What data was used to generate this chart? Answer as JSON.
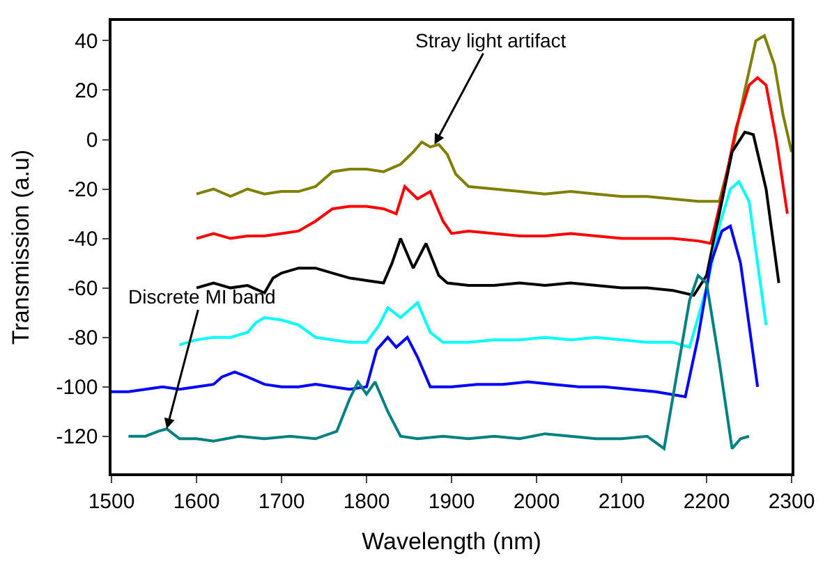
{
  "chart_data": {
    "type": "line",
    "xlabel": "Wavelength (nm)",
    "ylabel": "Transmission (a.u)",
    "xlim": [
      1500,
      2300
    ],
    "xticks": [
      1500,
      1600,
      1700,
      1800,
      1900,
      2000,
      2100,
      2200,
      2300
    ],
    "ylim": [
      -135,
      48
    ],
    "yticks": [
      -120,
      -100,
      -80,
      -60,
      -40,
      -20,
      0,
      20,
      40
    ],
    "marker": "none",
    "line_style": "solid",
    "annotations": [
      {
        "text": "Stray light artifact",
        "x": 1880,
        "y": -2
      },
      {
        "text": "Discrete MI band",
        "x": 1565,
        "y": -117
      }
    ],
    "series": [
      {
        "color": "#808000",
        "x": [
          1600,
          1620,
          1640,
          1660,
          1680,
          1700,
          1720,
          1740,
          1760,
          1780,
          1800,
          1820,
          1840,
          1855,
          1865,
          1875,
          1885,
          1895,
          1905,
          1920,
          1950,
          1980,
          2010,
          2040,
          2070,
          2100,
          2130,
          2160,
          2190,
          2215,
          2230,
          2245,
          2258,
          2268,
          2280,
          2290,
          2300
        ],
        "values": [
          -22,
          -20,
          -23,
          -20,
          -22,
          -21,
          -21,
          -19,
          -13,
          -12,
          -12,
          -13,
          -10,
          -5,
          -1,
          -3,
          -2,
          -6,
          -14,
          -19,
          -20,
          -21,
          -22,
          -21,
          -22,
          -23,
          -23,
          -24,
          -25,
          -25,
          -5,
          20,
          40,
          42,
          30,
          10,
          -5
        ]
      },
      {
        "color": "#ff0000",
        "x": [
          1600,
          1620,
          1640,
          1660,
          1680,
          1700,
          1720,
          1740,
          1760,
          1780,
          1800,
          1820,
          1835,
          1845,
          1860,
          1875,
          1890,
          1900,
          1920,
          1950,
          1980,
          2010,
          2040,
          2070,
          2100,
          2130,
          2160,
          2190,
          2205,
          2220,
          2235,
          2250,
          2260,
          2270,
          2282,
          2295
        ],
        "values": [
          -40,
          -38,
          -40,
          -39,
          -39,
          -38,
          -37,
          -33,
          -28,
          -27,
          -27,
          -28,
          -30,
          -19,
          -24,
          -21,
          -33,
          -38,
          -37,
          -38,
          -39,
          -39,
          -38,
          -39,
          -40,
          -40,
          -40,
          -41,
          -42,
          -20,
          5,
          22,
          25,
          22,
          0,
          -30
        ]
      },
      {
        "color": "#000000",
        "x": [
          1600,
          1620,
          1640,
          1660,
          1680,
          1690,
          1700,
          1720,
          1740,
          1760,
          1780,
          1800,
          1820,
          1830,
          1840,
          1855,
          1870,
          1885,
          1895,
          1920,
          1950,
          1980,
          2010,
          2040,
          2070,
          2100,
          2130,
          2160,
          2185,
          2200,
          2215,
          2230,
          2245,
          2255,
          2270,
          2285
        ],
        "values": [
          -60,
          -58,
          -60,
          -59,
          -62,
          -56,
          -54,
          -52,
          -52,
          -54,
          -56,
          -57,
          -58,
          -50,
          -40,
          -52,
          -42,
          -55,
          -58,
          -59,
          -59,
          -58,
          -59,
          -58,
          -59,
          -60,
          -60,
          -61,
          -63,
          -55,
          -30,
          -5,
          3,
          2,
          -20,
          -58
        ]
      },
      {
        "color": "#00ffff",
        "x": [
          1580,
          1600,
          1620,
          1640,
          1660,
          1670,
          1680,
          1700,
          1720,
          1740,
          1760,
          1780,
          1800,
          1815,
          1825,
          1840,
          1860,
          1875,
          1890,
          1920,
          1950,
          1980,
          2010,
          2040,
          2070,
          2100,
          2130,
          2160,
          2180,
          2200,
          2215,
          2228,
          2238,
          2250,
          2270
        ],
        "values": [
          -83,
          -81,
          -80,
          -80,
          -78,
          -74,
          -72,
          -73,
          -75,
          -80,
          -81,
          -82,
          -82,
          -75,
          -68,
          -72,
          -66,
          -78,
          -82,
          -82,
          -81,
          -81,
          -80,
          -81,
          -80,
          -81,
          -82,
          -82,
          -84,
          -60,
          -35,
          -20,
          -17,
          -25,
          -75
        ]
      },
      {
        "color": "#0000ff",
        "x": [
          1500,
          1520,
          1540,
          1560,
          1580,
          1600,
          1620,
          1630,
          1645,
          1660,
          1680,
          1700,
          1720,
          1740,
          1760,
          1780,
          1800,
          1812,
          1825,
          1835,
          1848,
          1860,
          1875,
          1900,
          1930,
          1960,
          1990,
          2020,
          2050,
          2080,
          2110,
          2140,
          2175,
          2190,
          2205,
          2218,
          2228,
          2240,
          2260
        ],
        "values": [
          -102,
          -102,
          -101,
          -100,
          -101,
          -100,
          -99,
          -96,
          -94,
          -96,
          -99,
          -100,
          -100,
          -99,
          -100,
          -101,
          -100,
          -85,
          -80,
          -84,
          -80,
          -88,
          -100,
          -100,
          -99,
          -99,
          -98,
          -99,
          -100,
          -100,
          -101,
          -102,
          -104,
          -80,
          -50,
          -37,
          -35,
          -50,
          -100
        ]
      },
      {
        "color": "#008080",
        "x": [
          1520,
          1540,
          1555,
          1565,
          1580,
          1600,
          1620,
          1650,
          1680,
          1710,
          1740,
          1765,
          1780,
          1790,
          1800,
          1810,
          1825,
          1840,
          1860,
          1890,
          1920,
          1950,
          1980,
          2010,
          2040,
          2070,
          2100,
          2130,
          2150,
          2165,
          2180,
          2190,
          2200,
          2215,
          2230,
          2240,
          2250
        ],
        "values": [
          -120,
          -120,
          -118,
          -117,
          -121,
          -121,
          -122,
          -120,
          -121,
          -120,
          -121,
          -118,
          -105,
          -98,
          -103,
          -98,
          -110,
          -120,
          -121,
          -120,
          -121,
          -120,
          -121,
          -119,
          -120,
          -121,
          -121,
          -120,
          -125,
          -95,
          -65,
          -55,
          -58,
          -90,
          -125,
          -121,
          -120
        ]
      }
    ]
  }
}
